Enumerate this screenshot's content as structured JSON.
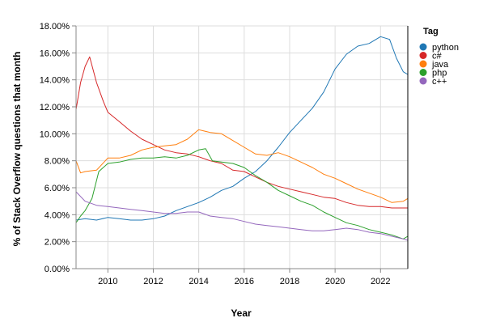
{
  "chart_data": {
    "type": "line",
    "title": "",
    "xlabel": "Year",
    "ylabel": "% of Stack Overflow questions that month",
    "xlim": [
      2008.6,
      2023.2
    ],
    "ylim": [
      0,
      18
    ],
    "grid": true,
    "x_ticks": [
      2010,
      2012,
      2014,
      2016,
      2018,
      2020,
      2022
    ],
    "x_tick_labels": [
      "2010",
      "2012",
      "2014",
      "2016",
      "2018",
      "2020",
      "2022"
    ],
    "y_ticks": [
      0,
      2,
      4,
      6,
      8,
      10,
      12,
      14,
      16,
      18
    ],
    "y_tick_labels": [
      "0.00%",
      "2.00%",
      "4.00%",
      "6.00%",
      "8.00%",
      "10.00%",
      "12.00%",
      "14.00%",
      "16.00%",
      "18.00%"
    ],
    "legend": {
      "title": "Tag",
      "position": "right"
    },
    "series": [
      {
        "name": "python",
        "color": "#1f77b4",
        "points": [
          [
            2008.6,
            3.6
          ],
          [
            2009.0,
            3.7
          ],
          [
            2009.5,
            3.6
          ],
          [
            2010.0,
            3.8
          ],
          [
            2010.5,
            3.7
          ],
          [
            2011.0,
            3.6
          ],
          [
            2011.5,
            3.6
          ],
          [
            2012.0,
            3.7
          ],
          [
            2012.5,
            3.9
          ],
          [
            2013.0,
            4.3
          ],
          [
            2013.5,
            4.6
          ],
          [
            2014.0,
            4.9
          ],
          [
            2014.5,
            5.3
          ],
          [
            2015.0,
            5.8
          ],
          [
            2015.5,
            6.1
          ],
          [
            2016.0,
            6.7
          ],
          [
            2016.5,
            7.2
          ],
          [
            2017.0,
            8.0
          ],
          [
            2017.5,
            9.0
          ],
          [
            2018.0,
            10.1
          ],
          [
            2018.5,
            11.0
          ],
          [
            2019.0,
            11.9
          ],
          [
            2019.5,
            13.1
          ],
          [
            2020.0,
            14.8
          ],
          [
            2020.5,
            15.9
          ],
          [
            2021.0,
            16.5
          ],
          [
            2021.5,
            16.7
          ],
          [
            2022.0,
            17.2
          ],
          [
            2022.4,
            17.0
          ],
          [
            2022.7,
            15.6
          ],
          [
            2023.0,
            14.6
          ],
          [
            2023.2,
            14.4
          ]
        ]
      },
      {
        "name": "c#",
        "color": "#d62728",
        "points": [
          [
            2008.6,
            11.8
          ],
          [
            2008.8,
            13.8
          ],
          [
            2009.0,
            15.0
          ],
          [
            2009.2,
            15.7
          ],
          [
            2009.5,
            13.8
          ],
          [
            2009.8,
            12.4
          ],
          [
            2010.0,
            11.6
          ],
          [
            2010.5,
            10.9
          ],
          [
            2011.0,
            10.2
          ],
          [
            2011.5,
            9.6
          ],
          [
            2012.0,
            9.2
          ],
          [
            2012.5,
            8.8
          ],
          [
            2013.0,
            8.6
          ],
          [
            2013.5,
            8.5
          ],
          [
            2014.0,
            8.3
          ],
          [
            2014.5,
            8.0
          ],
          [
            2015.0,
            7.8
          ],
          [
            2015.5,
            7.3
          ],
          [
            2016.0,
            7.2
          ],
          [
            2016.5,
            6.8
          ],
          [
            2017.0,
            6.4
          ],
          [
            2017.5,
            6.1
          ],
          [
            2018.0,
            5.9
          ],
          [
            2018.5,
            5.7
          ],
          [
            2019.0,
            5.5
          ],
          [
            2019.5,
            5.3
          ],
          [
            2020.0,
            5.2
          ],
          [
            2020.5,
            4.9
          ],
          [
            2021.0,
            4.7
          ],
          [
            2021.5,
            4.6
          ],
          [
            2022.0,
            4.6
          ],
          [
            2022.5,
            4.5
          ],
          [
            2023.2,
            4.5
          ]
        ]
      },
      {
        "name": "java",
        "color": "#ff7f0e",
        "points": [
          [
            2008.6,
            8.0
          ],
          [
            2008.8,
            7.1
          ],
          [
            2009.0,
            7.2
          ],
          [
            2009.5,
            7.3
          ],
          [
            2010.0,
            8.2
          ],
          [
            2010.5,
            8.2
          ],
          [
            2011.0,
            8.4
          ],
          [
            2011.5,
            8.8
          ],
          [
            2012.0,
            9.0
          ],
          [
            2012.5,
            9.1
          ],
          [
            2013.0,
            9.2
          ],
          [
            2013.5,
            9.6
          ],
          [
            2014.0,
            10.3
          ],
          [
            2014.5,
            10.1
          ],
          [
            2015.0,
            10.0
          ],
          [
            2015.5,
            9.5
          ],
          [
            2016.0,
            9.0
          ],
          [
            2016.5,
            8.5
          ],
          [
            2017.0,
            8.4
          ],
          [
            2017.5,
            8.6
          ],
          [
            2018.0,
            8.3
          ],
          [
            2018.5,
            7.9
          ],
          [
            2019.0,
            7.5
          ],
          [
            2019.5,
            7.0
          ],
          [
            2020.0,
            6.7
          ],
          [
            2020.5,
            6.3
          ],
          [
            2021.0,
            5.9
          ],
          [
            2021.5,
            5.6
          ],
          [
            2022.0,
            5.3
          ],
          [
            2022.5,
            4.9
          ],
          [
            2023.0,
            5.0
          ],
          [
            2023.2,
            5.2
          ]
        ]
      },
      {
        "name": "php",
        "color": "#2ca02c",
        "points": [
          [
            2008.6,
            3.4
          ],
          [
            2008.8,
            3.9
          ],
          [
            2009.0,
            4.3
          ],
          [
            2009.3,
            5.2
          ],
          [
            2009.6,
            7.2
          ],
          [
            2010.0,
            7.8
          ],
          [
            2010.5,
            7.9
          ],
          [
            2011.0,
            8.1
          ],
          [
            2011.5,
            8.2
          ],
          [
            2012.0,
            8.2
          ],
          [
            2012.5,
            8.3
          ],
          [
            2013.0,
            8.2
          ],
          [
            2013.5,
            8.4
          ],
          [
            2014.0,
            8.8
          ],
          [
            2014.3,
            8.9
          ],
          [
            2014.6,
            8.0
          ],
          [
            2015.0,
            7.9
          ],
          [
            2015.5,
            7.8
          ],
          [
            2016.0,
            7.5
          ],
          [
            2016.5,
            6.9
          ],
          [
            2017.0,
            6.4
          ],
          [
            2017.5,
            5.8
          ],
          [
            2018.0,
            5.4
          ],
          [
            2018.5,
            5.0
          ],
          [
            2019.0,
            4.7
          ],
          [
            2019.5,
            4.2
          ],
          [
            2020.0,
            3.8
          ],
          [
            2020.5,
            3.4
          ],
          [
            2021.0,
            3.2
          ],
          [
            2021.5,
            2.9
          ],
          [
            2022.0,
            2.7
          ],
          [
            2022.5,
            2.5
          ],
          [
            2023.0,
            2.2
          ],
          [
            2023.2,
            2.4
          ]
        ]
      },
      {
        "name": "c++",
        "color": "#9467bd",
        "points": [
          [
            2008.6,
            5.7
          ],
          [
            2009.0,
            5.0
          ],
          [
            2009.5,
            4.7
          ],
          [
            2010.0,
            4.6
          ],
          [
            2010.5,
            4.5
          ],
          [
            2011.0,
            4.4
          ],
          [
            2011.5,
            4.3
          ],
          [
            2012.0,
            4.2
          ],
          [
            2012.5,
            4.1
          ],
          [
            2013.0,
            4.1
          ],
          [
            2013.5,
            4.2
          ],
          [
            2014.0,
            4.2
          ],
          [
            2014.5,
            3.9
          ],
          [
            2015.0,
            3.8
          ],
          [
            2015.5,
            3.7
          ],
          [
            2016.0,
            3.5
          ],
          [
            2016.5,
            3.3
          ],
          [
            2017.0,
            3.2
          ],
          [
            2017.5,
            3.1
          ],
          [
            2018.0,
            3.0
          ],
          [
            2018.5,
            2.9
          ],
          [
            2019.0,
            2.8
          ],
          [
            2019.5,
            2.8
          ],
          [
            2020.0,
            2.9
          ],
          [
            2020.5,
            3.0
          ],
          [
            2021.0,
            2.9
          ],
          [
            2021.5,
            2.7
          ],
          [
            2022.0,
            2.6
          ],
          [
            2022.5,
            2.4
          ],
          [
            2023.0,
            2.2
          ],
          [
            2023.2,
            2.1
          ]
        ]
      }
    ]
  }
}
